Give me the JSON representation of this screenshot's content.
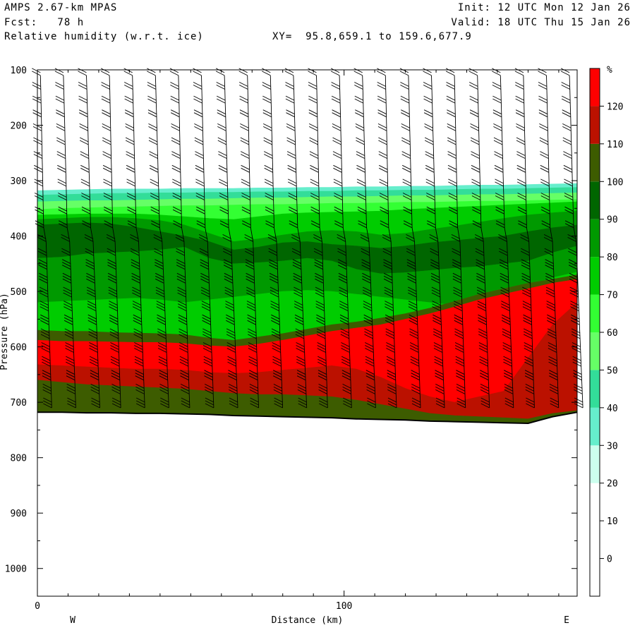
{
  "header": {
    "model": "AMPS 2.67-km MPAS",
    "fcst": "Fcst:   78 h",
    "field": "Relative humidity (w.r.t. ice)",
    "xy": "XY=  95.8,659.1 to 159.6,677.9",
    "init": "Init: 12 UTC Mon 12 Jan 26",
    "valid": "Valid: 18 UTC Thu 15 Jan 26"
  },
  "chart_data": {
    "type": "heatmap",
    "title": "Relative humidity (w.r.t. ice)",
    "xlabel": "Distance (km)",
    "ylabel": "Pressure (hPa)",
    "xlim": [
      0,
      176
    ],
    "ylim": [
      1050,
      100
    ],
    "x_ticks": [
      0,
      100
    ],
    "x_tick_labels": [
      "0",
      "100"
    ],
    "y_ticks": [
      100,
      200,
      300,
      400,
      500,
      600,
      700,
      800,
      900,
      1000
    ],
    "y_tick_labels": [
      "100",
      "200",
      "300",
      "400",
      "500",
      "600",
      "700",
      "800",
      "900",
      "1000"
    ],
    "x_end_labels": {
      "left": "W",
      "right": "E"
    },
    "colorbar": {
      "unit": "%",
      "levels": [
        0,
        10,
        20,
        30,
        40,
        50,
        60,
        70,
        80,
        90,
        100,
        110,
        120
      ],
      "level_labels": [
        "0",
        "10",
        "20",
        "30",
        "40",
        "50",
        "60",
        "70",
        "80",
        "90",
        "100",
        "110",
        "120"
      ],
      "colors": [
        "#ffffff",
        "#ffffff",
        "#ffffff",
        "#ccffee",
        "#66eecc",
        "#33dd99",
        "#66ff66",
        "#33ff33",
        "#00cc00",
        "#009900",
        "#006600",
        "#3d5c00",
        "#bb1100",
        "#ff0000"
      ]
    },
    "x_nodes": [
      0,
      8,
      16,
      24,
      32,
      40,
      48,
      56,
      64,
      72,
      80,
      88,
      96,
      104,
      112,
      120,
      128,
      136,
      144,
      152,
      160,
      168,
      176
    ],
    "terrain_hPa": [
      718,
      718,
      719,
      719,
      720,
      720,
      721,
      722,
      724,
      725,
      726,
      727,
      728,
      730,
      731,
      732,
      734,
      735,
      736,
      737,
      738,
      726,
      718
    ],
    "layers": [
      {
        "name": "rh_30_40",
        "value": 35,
        "top": [
          318,
          317,
          316,
          315,
          315,
          315,
          314,
          314,
          314,
          313,
          313,
          312,
          312,
          311,
          311,
          310,
          310,
          309,
          308,
          308,
          307,
          306,
          305
        ],
        "bottom": [
          326,
          325,
          324,
          323,
          323,
          322,
          322,
          321,
          321,
          320,
          320,
          319,
          319,
          318,
          318,
          317,
          317,
          316,
          315,
          315,
          314,
          313,
          312
        ]
      },
      {
        "name": "rh_40_50",
        "value": 45,
        "top": [
          326,
          325,
          324,
          323,
          323,
          322,
          322,
          321,
          321,
          320,
          320,
          319,
          319,
          318,
          318,
          317,
          317,
          316,
          315,
          315,
          314,
          313,
          312
        ],
        "bottom": [
          338,
          337,
          336,
          336,
          335,
          334,
          333,
          333,
          332,
          331,
          331,
          330,
          329,
          329,
          328,
          327,
          327,
          326,
          325,
          325,
          324,
          323,
          322
        ]
      },
      {
        "name": "rh_50_60",
        "value": 55,
        "top": [
          338,
          337,
          336,
          336,
          335,
          334,
          333,
          333,
          332,
          331,
          331,
          330,
          329,
          329,
          328,
          327,
          327,
          326,
          325,
          325,
          324,
          323,
          322
        ],
        "bottom": [
          352,
          350,
          349,
          348,
          347,
          346,
          345,
          345,
          344,
          343,
          343,
          342,
          341,
          341,
          340,
          339,
          339,
          338,
          337,
          337,
          336,
          335,
          334
        ]
      },
      {
        "name": "rh_60_70",
        "value": 65,
        "top": [
          352,
          350,
          349,
          348,
          347,
          346,
          345,
          345,
          344,
          343,
          343,
          342,
          341,
          341,
          340,
          339,
          339,
          338,
          337,
          337,
          336,
          335,
          334
        ],
        "bottom": [
          362,
          361,
          360,
          360,
          360,
          362,
          365,
          368,
          370,
          365,
          360,
          358,
          357,
          356,
          355,
          352,
          350,
          348,
          346,
          344,
          342,
          340,
          338
        ]
      },
      {
        "name": "rh_70_80",
        "value": 75,
        "top": [
          362,
          361,
          360,
          360,
          360,
          362,
          365,
          368,
          370,
          365,
          360,
          358,
          357,
          356,
          355,
          352,
          350,
          348,
          346,
          344,
          342,
          340,
          338
        ],
        "bottom": [
          370,
          368,
          366,
          366,
          368,
          372,
          380,
          395,
          410,
          405,
          398,
          392,
          390,
          392,
          398,
          395,
          388,
          382,
          375,
          368,
          362,
          358,
          355
        ]
      },
      {
        "name": "rh_80_90",
        "value": 85,
        "top": [
          370,
          368,
          366,
          366,
          368,
          372,
          380,
          395,
          410,
          405,
          398,
          392,
          390,
          392,
          398,
          395,
          388,
          382,
          375,
          368,
          362,
          358,
          355
        ],
        "bottom": [
          380,
          378,
          376,
          378,
          384,
          392,
          400,
          410,
          425,
          420,
          412,
          410,
          415,
          418,
          422,
          418,
          412,
          408,
          404,
          400,
          392,
          385,
          380
        ]
      },
      {
        "name": "rh_90_100",
        "value": 95,
        "top": [
          380,
          378,
          376,
          378,
          384,
          392,
          400,
          410,
          425,
          420,
          412,
          410,
          415,
          418,
          422,
          418,
          412,
          408,
          404,
          400,
          392,
          385,
          380
        ],
        "bottom": [
          440,
          438,
          432,
          430,
          428,
          425,
          420,
          440,
          450,
          448,
          445,
          440,
          445,
          460,
          468,
          466,
          462,
          458,
          455,
          450,
          445,
          430,
          418
        ]
      },
      {
        "name": "rh_80_90_low",
        "value": 85,
        "top": [
          440,
          438,
          432,
          430,
          428,
          425,
          420,
          440,
          450,
          448,
          445,
          440,
          445,
          460,
          468,
          466,
          462,
          458,
          455,
          450,
          445,
          430,
          418
        ],
        "bottom": [
          520,
          518,
          516,
          514,
          512,
          515,
          520,
          515,
          510,
          505,
          500,
          498,
          500,
          505,
          510,
          515,
          520,
          525,
          520,
          505,
          490,
          475,
          465
        ]
      },
      {
        "name": "rh_70_80_low",
        "value": 75,
        "top": [
          520,
          518,
          516,
          514,
          512,
          515,
          520,
          515,
          510,
          505,
          500,
          498,
          500,
          505,
          510,
          515,
          520,
          525,
          520,
          505,
          490,
          475,
          465
        ],
        "bottom": [
          570,
          572,
          572,
          574,
          575,
          576,
          578,
          584,
          588,
          582,
          576,
          568,
          560,
          555,
          548,
          540,
          530,
          518,
          505,
          495,
          485,
          478,
          470
        ]
      },
      {
        "name": "rh_100_110",
        "value": 105,
        "top": [
          570,
          572,
          572,
          574,
          575,
          576,
          578,
          584,
          588,
          582,
          576,
          568,
          560,
          555,
          548,
          540,
          530,
          518,
          505,
          495,
          485,
          478,
          470
        ],
        "bottom": [
          588,
          590,
          590,
          591,
          592,
          592,
          594,
          598,
          600,
          595,
          588,
          580,
          572,
          566,
          560,
          550,
          540,
          528,
          515,
          505,
          495,
          485,
          478
        ]
      },
      {
        "name": "rh_120_plus",
        "value": 125,
        "top": [
          588,
          590,
          590,
          591,
          592,
          592,
          594,
          598,
          600,
          595,
          588,
          580,
          572,
          566,
          560,
          550,
          540,
          528,
          515,
          505,
          495,
          485,
          478
        ],
        "bottom": [
          632,
          634,
          636,
          638,
          640,
          640,
          642,
          646,
          648,
          646,
          642,
          638,
          634,
          640,
          655,
          675,
          690,
          700,
          690,
          680,
          620,
          560,
          520
        ]
      },
      {
        "name": "rh_110_120",
        "value": 115,
        "top": [
          632,
          634,
          636,
          638,
          640,
          640,
          642,
          646,
          648,
          646,
          642,
          638,
          634,
          640,
          655,
          675,
          690,
          700,
          690,
          680,
          620,
          560,
          520
        ],
        "bottom": [
          660,
          664,
          668,
          670,
          672,
          674,
          676,
          680,
          684,
          686,
          686,
          688,
          690,
          696,
          704,
          712,
          720,
          724,
          726,
          728,
          730,
          720,
          715
        ]
      },
      {
        "name": "rh_100_110_sfc",
        "value": 105,
        "top": [
          660,
          664,
          668,
          670,
          672,
          674,
          676,
          680,
          684,
          686,
          686,
          688,
          690,
          696,
          704,
          712,
          720,
          724,
          726,
          728,
          730,
          720,
          715
        ],
        "bottom": [
          718,
          718,
          719,
          719,
          720,
          720,
          721,
          722,
          724,
          725,
          726,
          727,
          728,
          730,
          731,
          732,
          734,
          735,
          736,
          737,
          738,
          726,
          718
        ]
      }
    ],
    "wind_barb_columns_km": [
      1,
      8.5,
      16,
      23.5,
      31,
      38.5,
      46,
      53.5,
      61,
      68.5,
      76,
      83.5,
      91,
      98.5,
      106,
      113.5,
      121,
      128.5,
      136,
      143.5,
      151,
      158.5,
      166,
      173.5
    ],
    "wind_barb_spacing_hPa": 25,
    "grid": false,
    "legend": "right"
  }
}
